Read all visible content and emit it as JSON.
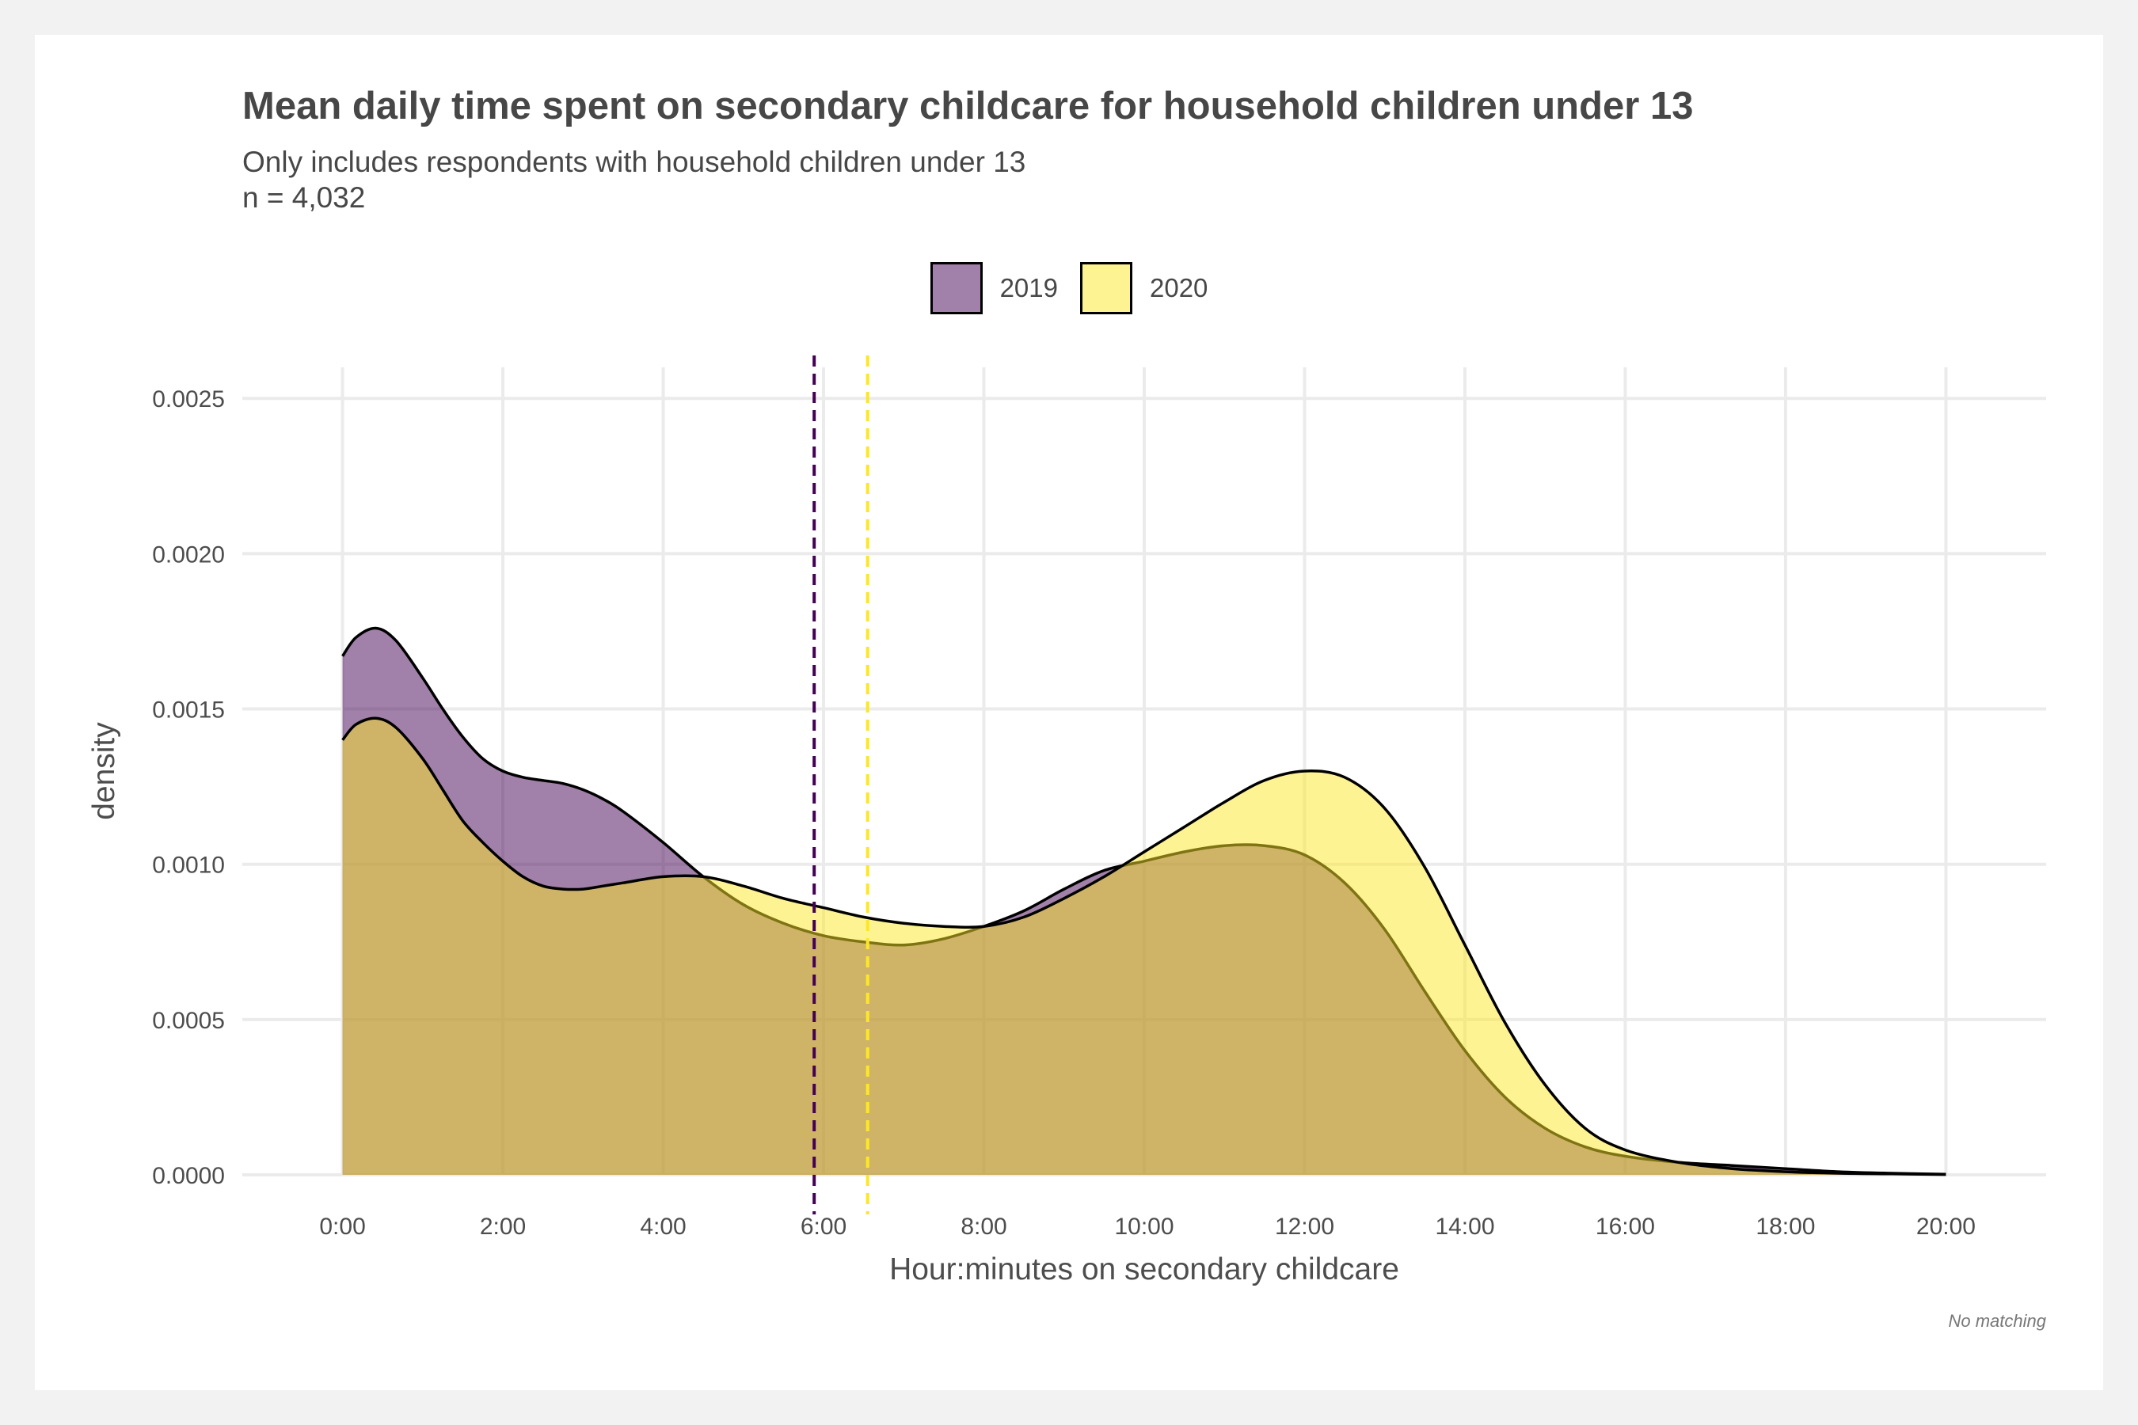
{
  "chart_data": {
    "type": "area",
    "title": "Mean daily time spent on secondary childcare for household children under 13",
    "subtitle_lines": [
      "Only includes respondents with household children under 13",
      "n = 4,032"
    ],
    "xlabel": "Hour:minutes on secondary childcare",
    "ylabel": "density",
    "caption": "No matching",
    "x_unit": "minutes",
    "xlim": [
      -75,
      1275
    ],
    "ylim": [
      0,
      0.0026
    ],
    "x_ticks": [
      {
        "value": 0,
        "label": "0:00"
      },
      {
        "value": 120,
        "label": "2:00"
      },
      {
        "value": 240,
        "label": "4:00"
      },
      {
        "value": 360,
        "label": "6:00"
      },
      {
        "value": 480,
        "label": "8:00"
      },
      {
        "value": 600,
        "label": "10:00"
      },
      {
        "value": 720,
        "label": "12:00"
      },
      {
        "value": 840,
        "label": "14:00"
      },
      {
        "value": 960,
        "label": "16:00"
      },
      {
        "value": 1080,
        "label": "18:00"
      },
      {
        "value": 1200,
        "label": "20:00"
      }
    ],
    "y_ticks": [
      {
        "value": 0,
        "label": "0.0000"
      },
      {
        "value": 0.0005,
        "label": "0.0005"
      },
      {
        "value": 0.001,
        "label": "0.0010"
      },
      {
        "value": 0.0015,
        "label": "0.0015"
      },
      {
        "value": 0.002,
        "label": "0.0020"
      },
      {
        "value": 0.0025,
        "label": "0.0025"
      }
    ],
    "grid": true,
    "legend_position": "top",
    "series": [
      {
        "name": "2019",
        "fill": "#440154",
        "mean_line": 353,
        "x": [
          0,
          10,
          25,
          40,
          60,
          75,
          90,
          105,
          120,
          135,
          150,
          165,
          180,
          195,
          210,
          240,
          270,
          300,
          330,
          360,
          390,
          420,
          450,
          480,
          510,
          540,
          570,
          600,
          630,
          660,
          690,
          720,
          750,
          780,
          810,
          840,
          870,
          900,
          930,
          960,
          1000,
          1040,
          1080,
          1120,
          1160,
          1200
        ],
        "y": [
          0.00167,
          0.00173,
          0.00176,
          0.00172,
          0.0016,
          0.0015,
          0.00141,
          0.00134,
          0.0013,
          0.00128,
          0.00127,
          0.00126,
          0.00124,
          0.00121,
          0.00117,
          0.00107,
          0.00096,
          0.00087,
          0.00081,
          0.00077,
          0.00075,
          0.00074,
          0.00076,
          0.0008,
          0.00085,
          0.00092,
          0.00098,
          0.00101,
          0.00104,
          0.00106,
          0.00106,
          0.00103,
          0.00094,
          0.00079,
          0.00059,
          0.0004,
          0.00025,
          0.00015,
          9e-05,
          6e-05,
          4e-05,
          3e-05,
          2e-05,
          1e-05,
          5e-06,
          2e-06
        ]
      },
      {
        "name": "2020",
        "fill": "#fde725",
        "mean_line": 393,
        "x": [
          0,
          10,
          25,
          40,
          60,
          75,
          90,
          105,
          120,
          135,
          150,
          165,
          180,
          195,
          210,
          240,
          270,
          300,
          330,
          360,
          390,
          420,
          450,
          480,
          510,
          540,
          570,
          600,
          630,
          660,
          690,
          720,
          750,
          780,
          810,
          840,
          870,
          900,
          930,
          960,
          1000,
          1040,
          1080,
          1120,
          1160,
          1200
        ],
        "y": [
          0.0014,
          0.00145,
          0.00147,
          0.00144,
          0.00134,
          0.00124,
          0.00114,
          0.00107,
          0.00101,
          0.00096,
          0.00093,
          0.00092,
          0.00092,
          0.00093,
          0.00094,
          0.00096,
          0.00096,
          0.00093,
          0.00089,
          0.00086,
          0.00083,
          0.00081,
          0.0008,
          0.0008,
          0.00083,
          0.00089,
          0.00096,
          0.00104,
          0.00112,
          0.0012,
          0.00127,
          0.0013,
          0.00128,
          0.00118,
          0.00099,
          0.00074,
          0.00049,
          0.00029,
          0.00015,
          8e-05,
          4e-05,
          2e-05,
          1e-05,
          5e-06,
          3e-06,
          1e-06
        ]
      }
    ]
  }
}
